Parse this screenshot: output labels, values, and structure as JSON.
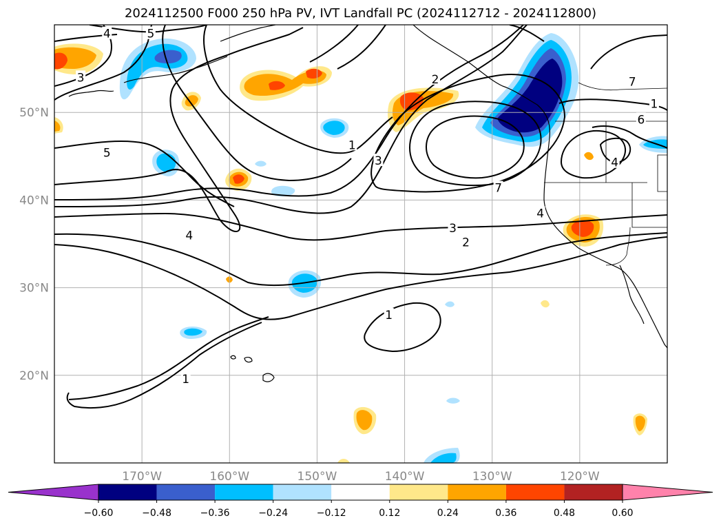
{
  "title": "2024112500 F000 250 hPa PV, IVT Landfall PC (2024112712 - 2024112800)",
  "map": {
    "lon_range": [
      -180,
      -110
    ],
    "lat_range": [
      10,
      60
    ],
    "lat_labels": [
      {
        "lat": 50,
        "text": "50°N"
      },
      {
        "lat": 40,
        "text": "40°N"
      },
      {
        "lat": 30,
        "text": "30°N"
      },
      {
        "lat": 20,
        "text": "20°N"
      }
    ],
    "lon_labels": [
      {
        "lon": -170,
        "text": "170°W"
      },
      {
        "lon": -160,
        "text": "160°W"
      },
      {
        "lon": -150,
        "text": "150°W"
      },
      {
        "lon": -140,
        "text": "140°W"
      },
      {
        "lon": -130,
        "text": "130°W"
      },
      {
        "lon": -120,
        "text": "120°W"
      }
    ],
    "contour_labels": [
      {
        "text": "4",
        "lon": -174,
        "lat": 59
      },
      {
        "text": "5",
        "lon": -169,
        "lat": 59
      },
      {
        "text": "3",
        "lon": -177,
        "lat": 54
      },
      {
        "text": "5",
        "lon": -174,
        "lat": 45.4
      },
      {
        "text": "4",
        "lon": -164.6,
        "lat": 36
      },
      {
        "text": "1",
        "lon": -165,
        "lat": 19.6
      },
      {
        "text": "1",
        "lon": -146,
        "lat": 46.3
      },
      {
        "text": "3",
        "lon": -143,
        "lat": 44.5
      },
      {
        "text": "2",
        "lon": -136.5,
        "lat": 53.8
      },
      {
        "text": "7",
        "lon": -129.3,
        "lat": 41.4
      },
      {
        "text": "7",
        "lon": -114,
        "lat": 53.5
      },
      {
        "text": "1",
        "lon": -111.5,
        "lat": 51
      },
      {
        "text": "6",
        "lon": -113,
        "lat": 49.2
      },
      {
        "text": "4",
        "lon": -116,
        "lat": 44.3
      },
      {
        "text": "4",
        "lon": -124.5,
        "lat": 38.5
      },
      {
        "text": "3",
        "lon": -134.5,
        "lat": 36.8
      },
      {
        "text": "2",
        "lon": -133,
        "lat": 35.2
      },
      {
        "text": "1",
        "lon": -141.8,
        "lat": 26.9
      }
    ]
  },
  "colorbar": {
    "levels": [
      "-0.60",
      "−0.48",
      "−0.36",
      "−0.24",
      "−0.12",
      "0.12",
      "0.24",
      "0.36",
      "0.48",
      "0.60"
    ],
    "tick_labels": [
      "−0.60",
      "−0.48",
      "−0.36",
      "−0.24",
      "−0.12",
      "0.12",
      "0.24",
      "0.36",
      "0.48",
      "0.60"
    ],
    "colors": [
      "#9932cc",
      "#000080",
      "#3a5fcd",
      "#00bfff",
      "#b0e2ff",
      "#ffffff",
      "#ffe88a",
      "#ffa500",
      "#ff4500",
      "#b22222",
      "#ff82ab"
    ]
  }
}
